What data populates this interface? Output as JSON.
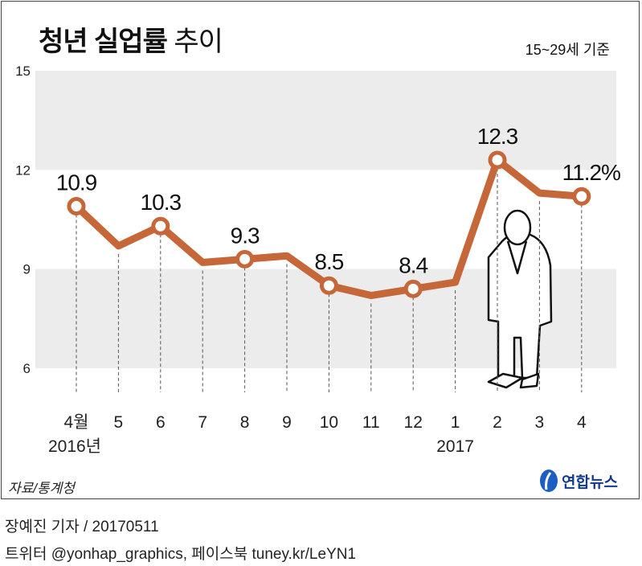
{
  "title_bold": "청년 실업률",
  "title_light": "추이",
  "basis": "15~29세 기준",
  "source": "자료/통계청",
  "logo_text": "연합뉴스",
  "footer": {
    "line1": "장예진 기자 / 20170511",
    "line2": "트위터 @yonhap_graphics, 페이스북 tuney.kr/LeYN1"
  },
  "colors": {
    "line": "#c6673a",
    "band": "#ececec"
  },
  "chart_data": {
    "type": "line",
    "title": "청년 실업률 추이",
    "ylabel": "%",
    "ylim": [
      6,
      15
    ],
    "yticks": [
      6,
      9,
      12,
      15
    ],
    "categories": [
      "4월",
      "5",
      "6",
      "7",
      "8",
      "9",
      "10",
      "11",
      "12",
      "1",
      "2",
      "3",
      "4"
    ],
    "year_labels": [
      {
        "index": 0,
        "label": "2016년"
      },
      {
        "index": 9,
        "label": "2017"
      }
    ],
    "values": [
      10.9,
      9.7,
      10.3,
      9.2,
      9.3,
      9.4,
      8.5,
      8.2,
      8.4,
      8.6,
      12.3,
      11.3,
      11.2
    ],
    "labeled_points": [
      {
        "index": 0,
        "label": "10.9"
      },
      {
        "index": 2,
        "label": "10.3"
      },
      {
        "index": 4,
        "label": "9.3"
      },
      {
        "index": 6,
        "label": "8.5"
      },
      {
        "index": 8,
        "label": "8.4"
      },
      {
        "index": 10,
        "label": "12.3"
      },
      {
        "index": 12,
        "label": "11.2%"
      }
    ]
  }
}
